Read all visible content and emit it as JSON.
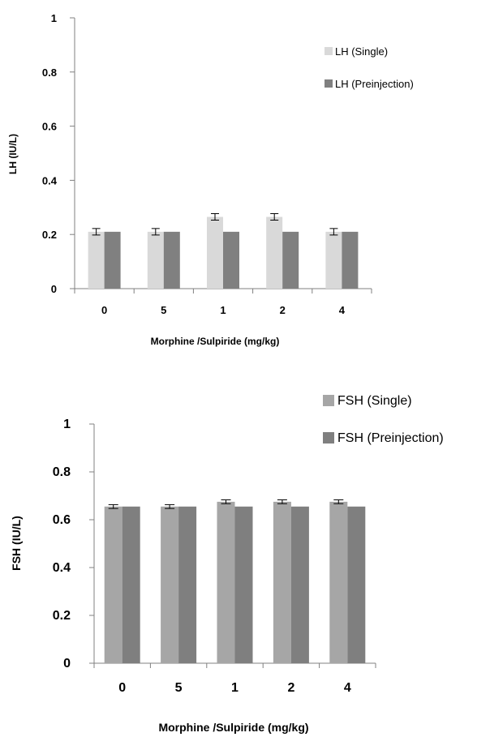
{
  "chart_data": [
    {
      "type": "bar",
      "categories": [
        "0",
        "5",
        "1",
        "2",
        "4"
      ],
      "xlabel": "Morphine /Sulpiride (mg/kg)",
      "ylabel": "LH (IU/L)",
      "ylim": [
        0,
        1
      ],
      "yticks": [
        "0",
        "0.2",
        "0.4",
        "0.6",
        "0.8",
        "1"
      ],
      "legend_position": "top-right",
      "grid": false,
      "error_bars": true,
      "series": [
        {
          "name": "LH (Single)",
          "color": "#d9d9d9",
          "values": [
            0.21,
            0.21,
            0.265,
            0.265,
            0.21
          ],
          "errors": [
            0.012,
            0.012,
            0.012,
            0.012,
            0.012
          ]
        },
        {
          "name": "LH (Preinjection)",
          "color": "#808080",
          "values": [
            0.21,
            0.21,
            0.21,
            0.21,
            0.21
          ],
          "errors": [
            0,
            0,
            0,
            0,
            0
          ]
        }
      ]
    },
    {
      "type": "bar",
      "categories": [
        "0",
        "5",
        "1",
        "2",
        "4"
      ],
      "xlabel": "Morphine /Sulpiride (mg/kg)",
      "ylabel": "FSH (IU/L)",
      "ylim": [
        0,
        1
      ],
      "yticks": [
        "0",
        "0.2",
        "0.4",
        "0.6",
        "0.8",
        "1"
      ],
      "legend_position": "top-right",
      "grid": false,
      "error_bars": true,
      "series": [
        {
          "name": "FSH (Single)",
          "color": "#a6a6a6",
          "values": [
            0.655,
            0.655,
            0.675,
            0.675,
            0.675
          ],
          "errors": [
            0.008,
            0.008,
            0.008,
            0.008,
            0.008
          ]
        },
        {
          "name": "FSH (Preinjection)",
          "color": "#7f7f7f",
          "values": [
            0.655,
            0.655,
            0.655,
            0.655,
            0.655
          ],
          "errors": [
            0,
            0,
            0,
            0,
            0
          ]
        }
      ]
    }
  ]
}
